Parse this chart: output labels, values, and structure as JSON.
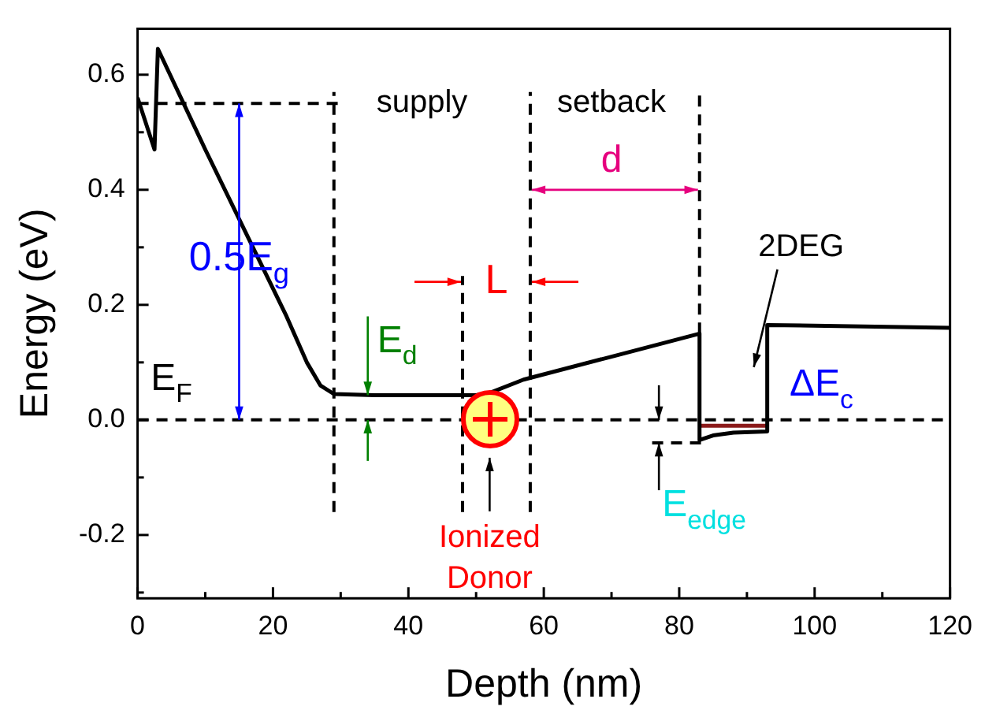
{
  "chart_data": {
    "type": "line",
    "xlabel": "Depth (nm)",
    "ylabel": "Energy (eV)",
    "xlim": [
      0,
      120
    ],
    "ylim": [
      -0.31,
      0.68
    ],
    "xticks": [
      0,
      {
        "value": 10,
        "label": null
      },
      20,
      {
        "value": 30,
        "label": null
      },
      40,
      {
        "value": 50,
        "label": null
      },
      60,
      {
        "value": 70,
        "label": null
      },
      80,
      {
        "value": 90,
        "label": null
      },
      100,
      {
        "value": 110,
        "label": null
      },
      120
    ],
    "yticks": [
      {
        "value": -0.3,
        "label": null
      },
      {
        "value": -0.2,
        "label": "-0.2"
      },
      {
        "value": -0.1,
        "label": null
      },
      {
        "value": 0,
        "label": "0.0"
      },
      {
        "value": 0.1,
        "label": null
      },
      {
        "value": 0.2,
        "label": "0.2"
      },
      {
        "value": 0.3,
        "label": null
      },
      {
        "value": 0.4,
        "label": "0.4"
      },
      {
        "value": 0.5,
        "label": null
      },
      {
        "value": 0.6,
        "label": "0.6"
      }
    ],
    "grid": false,
    "legend": false,
    "marker": "none",
    "series": [
      {
        "color": "#000000",
        "line_style": "solid",
        "x": [
          0,
          2.5,
          3,
          10,
          16,
          22,
          25,
          27,
          29,
          35,
          50,
          52,
          57,
          70,
          83,
          83,
          85,
          88,
          93,
          93,
          120
        ],
        "values": [
          0.56,
          0.47,
          0.645,
          0.47,
          0.325,
          0.18,
          0.1,
          0.06,
          0.045,
          0.043,
          0.043,
          0.047,
          0.07,
          0.11,
          0.15,
          -0.035,
          -0.027,
          -0.022,
          -0.02,
          0.165,
          0.16
        ]
      },
      {
        "color": "#8b1a1a",
        "line_style": "solid",
        "x": [
          83,
          93
        ],
        "values": [
          -0.01,
          -0.01
        ]
      },
      {
        "color": "#000000",
        "line_style": "dashed",
        "x": [
          0,
          30
        ],
        "values": [
          0.55,
          0.55
        ]
      },
      {
        "color": "#000000",
        "line_style": "dashed",
        "x": [
          29,
          29
        ],
        "values": [
          -0.16,
          0.57
        ]
      },
      {
        "color": "#000000",
        "line_style": "dashed",
        "x": [
          48,
          48
        ],
        "values": [
          -0.16,
          0.25
        ]
      },
      {
        "color": "#000000",
        "line_style": "dashed",
        "x": [
          58,
          58
        ],
        "values": [
          -0.16,
          0.57
        ]
      },
      {
        "color": "#000000",
        "line_style": "dashed",
        "x": [
          83,
          83
        ],
        "values": [
          0.15,
          0.57
        ]
      },
      {
        "color": "#000000",
        "line_style": "dashed",
        "x": [
          76,
          84
        ],
        "values": [
          -0.04,
          -0.04
        ]
      }
    ],
    "ref_lines": [
      {
        "axis": "y",
        "value": 0,
        "color": "#000000",
        "line_style": "dashed"
      }
    ],
    "annotations": [
      "supply",
      "setback",
      "d",
      "L",
      "2DEG",
      "ΔE$_{c}$",
      "0.5E$_{g}$",
      {
        "text": "E$_{d}$",
        "x": 34,
        "y": 0.043
      },
      "E$_{F}$",
      "E$_{edge}$",
      "Ionized\nDonor"
    ]
  }
}
